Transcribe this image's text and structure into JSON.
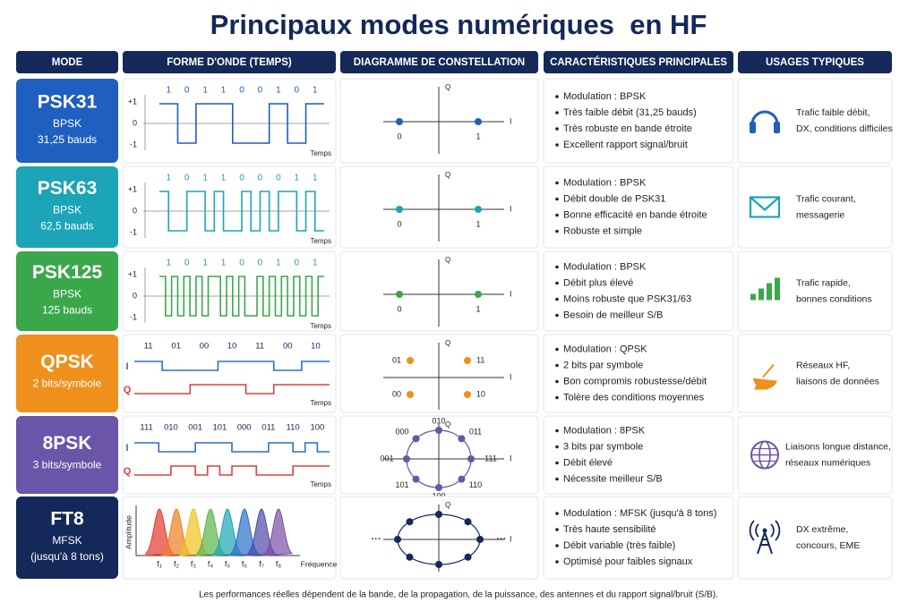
{
  "title": "Principaux modes numériques  en HF",
  "headers": [
    "MODE",
    "FORME D'ONDE (TEMPS)",
    "DIAGRAMME DE CONSTELLATION",
    "CARACTÉRISTIQUES PRINCIPALES",
    "USAGES TYPIQUES"
  ],
  "rows": [
    {
      "mode": "PSK31",
      "color": "#1f5fbf",
      "sub": [
        "BPSK",
        "31,25 bauds"
      ],
      "wave": {
        "bits": [
          "1",
          "0",
          "1",
          "1",
          "0",
          "0",
          "1",
          "0",
          "1"
        ],
        "levels": [
          "+1",
          "0",
          "-1"
        ],
        "time": "Temps"
      },
      "constellation": {
        "q": "Q",
        "i": "I",
        "points": [
          "0",
          "1"
        ]
      },
      "features": [
        "Modulation : BPSK",
        "Très faible débit (31,25 bauds)",
        "Très robuste en bande étroite",
        "Excellent rapport signal/bruit"
      ],
      "usage": [
        "Trafic faible débit,",
        "DX, conditions difficiles"
      ]
    },
    {
      "mode": "PSK63",
      "color": "#1ba5b6",
      "sub": [
        "BPSK",
        "62,5 bauds"
      ],
      "wave": {
        "bits": [
          "1",
          "0",
          "1",
          "1",
          "0",
          "0",
          "0",
          "1",
          "1"
        ],
        "levels": [
          "+1",
          "0",
          "-1"
        ],
        "time": "Temps"
      },
      "constellation": {
        "q": "Q",
        "i": "I",
        "points": [
          "0",
          "1"
        ]
      },
      "features": [
        "Modulation : BPSK",
        "Débit double de PSK31",
        "Bonne efficacité en bande étroite",
        "Robuste et simple"
      ],
      "usage": [
        "Trafic courant,",
        "messagerie"
      ]
    },
    {
      "mode": "PSK125",
      "color": "#3aa84a",
      "sub": [
        "BPSK",
        "125 bauds"
      ],
      "wave": {
        "bits": [
          "1",
          "0",
          "1",
          "1",
          "0",
          "0",
          "1",
          "0",
          "1"
        ],
        "levels": [
          "+1",
          "0",
          "-1"
        ],
        "time": "Temps"
      },
      "constellation": {
        "q": "Q",
        "i": "I",
        "points": [
          "0",
          "1"
        ]
      },
      "features": [
        "Modulation : BPSK",
        "Débit plus élevé",
        "Moins robuste que PSK31/63",
        "Besoin de meilleur S/B"
      ],
      "usage": [
        "Trafic rapide,",
        "bonnes conditions"
      ]
    },
    {
      "mode": "QPSK",
      "color": "#f0901c",
      "sub": [
        "2 bits/symbole"
      ],
      "wave": {
        "bits": [
          "11",
          "01",
          "00",
          "10",
          "11",
          "00",
          "10"
        ],
        "i": "I",
        "q": "Q",
        "time": "Temps"
      },
      "constellation": {
        "q": "Q",
        "i": "I",
        "points": [
          "01",
          "11",
          "00",
          "10"
        ]
      },
      "features": [
        "Modulation : QPSK",
        "2 bits par symbole",
        "Bon compromis robustesse/débit",
        "Tolère des conditions moyennes"
      ],
      "usage": [
        "Réseaux HF,",
        "liaisons de données"
      ]
    },
    {
      "mode": "8PSK",
      "color": "#6a55a8",
      "sub": [
        "3 bits/symbole"
      ],
      "wave": {
        "bits": [
          "111",
          "010",
          "001",
          "101",
          "000",
          "011",
          "110",
          "100"
        ],
        "i": "I",
        "q": "Q",
        "time": "Temps"
      },
      "constellation": {
        "q": "Q",
        "i": "I",
        "points": [
          "010",
          "011",
          "111",
          "110",
          "100",
          "101",
          "001",
          "000"
        ]
      },
      "features": [
        "Modulation : 8PSK",
        "3 bits par symbole",
        "Débit élevé",
        "Nécessite meilleur S/B"
      ],
      "usage": [
        "Liaisons longue distance,",
        "réseaux numériques"
      ]
    },
    {
      "mode": "FT8",
      "color": "#14285a",
      "sub": [
        "MFSK",
        "(jusqu'à 8 tons)"
      ],
      "wave": {
        "amplitude": "Amplitude",
        "freqs": [
          "f₁",
          "f₂",
          "f₃",
          "f₄",
          "f₅",
          "f₆",
          "f₇",
          "f₈"
        ],
        "frequency": "Fréquence"
      },
      "constellation": {
        "q": "Q",
        "i": "I",
        "ellipsis": [
          "···",
          "···"
        ]
      },
      "features": [
        "Modulation : MFSK (jusqu'à 8 tons)",
        "Très haute sensibilité",
        "Débit variable (très faible)",
        "Optimisé pour faibles signaux"
      ],
      "usage": [
        "DX extrême,",
        "concours, EME"
      ]
    }
  ],
  "footer": "Les performances réelles dépendent de la bande, de la propagation, de la puissance, des antennes et du rapport signal/bruit (S/B)."
}
